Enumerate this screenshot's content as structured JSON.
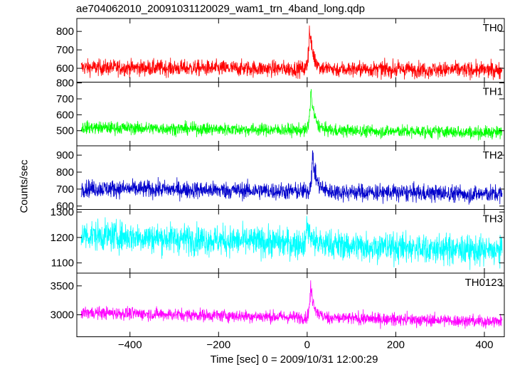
{
  "chart_data": {
    "type": "line",
    "title": "ae704062010_20091031120029_wam1_trn_4band_long.qdp",
    "xlabel": "Time [sec] 0 = 2009/10/31 12:00:29",
    "ylabel": "Counts/sec",
    "xlim": [
      -520,
      445
    ],
    "x_ticks": [
      -400,
      -200,
      0,
      200,
      400
    ],
    "x_tick_labels": [
      "−400",
      "−200",
      "0",
      "200",
      "400"
    ],
    "grid": false,
    "panels": [
      {
        "name": "TH0",
        "color": "#ff0000",
        "ylim": [
          525,
          870
        ],
        "y_ticks": [
          600,
          700,
          800
        ],
        "y_tick_labels": [
          "600",
          "700",
          "800"
        ],
        "baseline_start": 605,
        "baseline_end": 590,
        "noise": 22,
        "peak": 840,
        "peak_time": 5
      },
      {
        "name": "TH1",
        "color": "#00ff00",
        "ylim": [
          405,
          805
        ],
        "y_ticks": [
          500,
          600,
          700,
          800
        ],
        "y_tick_labels": [
          "500",
          "600",
          "700",
          "800"
        ],
        "baseline_start": 520,
        "baseline_end": 488,
        "noise": 20,
        "peak": 790,
        "peak_time": 8
      },
      {
        "name": "TH2",
        "color": "#0000cc",
        "ylim": [
          580,
          955
        ],
        "y_ticks": [
          600,
          700,
          800,
          900
        ],
        "y_tick_labels": [
          "600",
          "700",
          "800",
          "900"
        ],
        "baseline_start": 705,
        "baseline_end": 670,
        "noise": 26,
        "peak": 940,
        "peak_time": 12
      },
      {
        "name": "TH3",
        "color": "#00ffff",
        "ylim": [
          1060,
          1310
        ],
        "y_ticks": [
          1100,
          1200,
          1300
        ],
        "y_tick_labels": [
          "1100",
          "1200",
          "1300"
        ],
        "baseline_start": 1210,
        "baseline_end": 1145,
        "noise": 30,
        "peak": 1300,
        "peak_time": 0
      },
      {
        "name": "TH0123",
        "color": "#ff00ff",
        "ylim": [
          2620,
          3720
        ],
        "y_ticks": [
          3000,
          3500
        ],
        "y_tick_labels": [
          "3000",
          "3500"
        ],
        "baseline_start": 3040,
        "baseline_end": 2880,
        "noise": 55,
        "peak": 3640,
        "peak_time": 8
      }
    ]
  }
}
